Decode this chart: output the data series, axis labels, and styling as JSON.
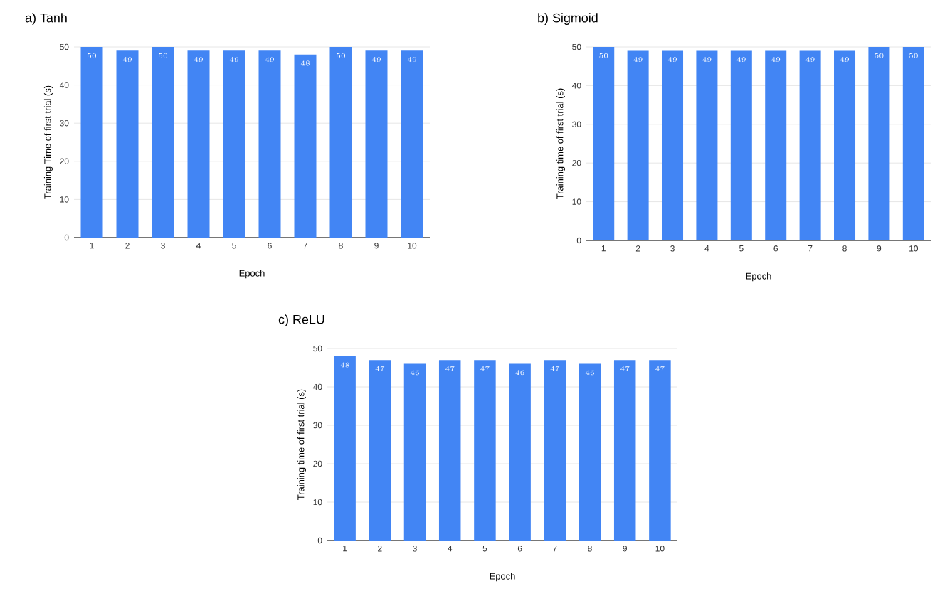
{
  "chart_data": [
    {
      "type": "bar",
      "title": "a) Tanh",
      "xlabel": "Epoch",
      "ylabel": "Training Time of first trial (s)",
      "categories": [
        "1",
        "2",
        "3",
        "4",
        "5",
        "6",
        "7",
        "8",
        "9",
        "10"
      ],
      "values": [
        50,
        49,
        50,
        49,
        49,
        49,
        48,
        50,
        49,
        49
      ],
      "color": "#4285f4",
      "ylim": [
        0,
        50
      ],
      "yticks": [
        0,
        10,
        20,
        30,
        40,
        50
      ],
      "grid": "y",
      "data_labels": true
    },
    {
      "type": "bar",
      "title": "b) Sigmoid",
      "xlabel": "Epoch",
      "ylabel": "Training time of first trial (s)",
      "categories": [
        "1",
        "2",
        "3",
        "4",
        "5",
        "6",
        "7",
        "8",
        "9",
        "10"
      ],
      "values": [
        50,
        49,
        49,
        49,
        49,
        49,
        49,
        49,
        50,
        50
      ],
      "color": "#4285f4",
      "ylim": [
        0,
        50
      ],
      "yticks": [
        0,
        10,
        20,
        30,
        40,
        50
      ],
      "grid": "y",
      "data_labels": true
    },
    {
      "type": "bar",
      "title": "c) ReLU",
      "xlabel": "Epoch",
      "ylabel": "Training time of first trial (s)",
      "categories": [
        "1",
        "2",
        "3",
        "4",
        "5",
        "6",
        "7",
        "8",
        "9",
        "10"
      ],
      "values": [
        48,
        47,
        46,
        47,
        47,
        46,
        47,
        46,
        47,
        47
      ],
      "color": "#4285f4",
      "ylim": [
        0,
        50
      ],
      "yticks": [
        0,
        10,
        20,
        30,
        40,
        50
      ],
      "grid": "y",
      "data_labels": true
    }
  ]
}
